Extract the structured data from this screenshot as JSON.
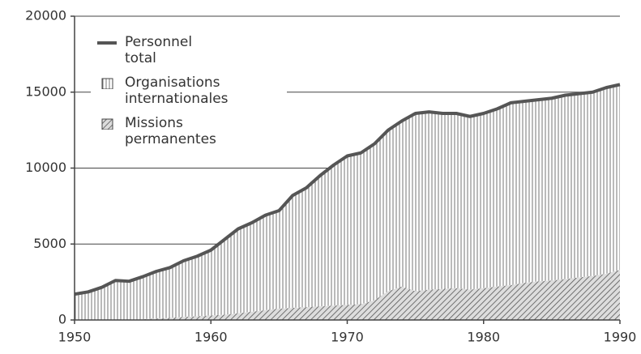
{
  "chart_data": {
    "type": "stacked-area",
    "x": [
      1950,
      1951,
      1952,
      1953,
      1954,
      1955,
      1956,
      1957,
      1958,
      1959,
      1960,
      1961,
      1962,
      1963,
      1964,
      1965,
      1966,
      1967,
      1968,
      1969,
      1970,
      1971,
      1972,
      1973,
      1974,
      1975,
      1976,
      1977,
      1978,
      1979,
      1980,
      1981,
      1982,
      1983,
      1984,
      1985,
      1986,
      1987,
      1988,
      1989,
      1990
    ],
    "series": [
      {
        "name": "Missions permanentes",
        "color": "#555555",
        "pattern": "diagonal",
        "values": [
          0,
          0,
          0,
          0,
          0,
          50,
          100,
          150,
          200,
          250,
          300,
          350,
          450,
          550,
          650,
          750,
          800,
          850,
          900,
          950,
          1000,
          1050,
          1300,
          1900,
          2200,
          1900,
          2000,
          2050,
          2100,
          2000,
          2100,
          2200,
          2300,
          2450,
          2550,
          2600,
          2700,
          2800,
          2900,
          3050,
          3300
        ]
      },
      {
        "name": "Organisations internationales",
        "color": "#555555",
        "pattern": "vertical",
        "values": [
          1700,
          1850,
          2150,
          2600,
          2550,
          2800,
          3100,
          3300,
          3700,
          3950,
          4300,
          4950,
          5550,
          5850,
          6250,
          6450,
          7400,
          7850,
          8600,
          9250,
          9800,
          9950,
          10300,
          10600,
          10900,
          11700,
          11700,
          11550,
          11500,
          11400,
          11500,
          11700,
          12000,
          11950,
          11950,
          12000,
          12100,
          12100,
          12100,
          12250,
          12200
        ]
      },
      {
        "name": "Personnel total",
        "color": "#555555",
        "line": true,
        "values": [
          1700,
          1850,
          2150,
          2600,
          2550,
          2850,
          3200,
          3450,
          3900,
          4200,
          4600,
          5300,
          6000,
          6400,
          6900,
          7200,
          8200,
          8700,
          9500,
          10200,
          10800,
          11000,
          11600,
          12500,
          13100,
          13600,
          13700,
          13600,
          13600,
          13400,
          13600,
          13900,
          14300,
          14400,
          14500,
          14600,
          14800,
          14900,
          15000,
          15300,
          15500
        ]
      }
    ],
    "xlim": [
      1950,
      1990
    ],
    "xticks": [
      1950,
      1960,
      1970,
      1980,
      1990
    ],
    "ylim": [
      0,
      20000
    ],
    "yticks": [
      0,
      5000,
      10000,
      15000,
      20000
    ],
    "grid": true
  }
}
